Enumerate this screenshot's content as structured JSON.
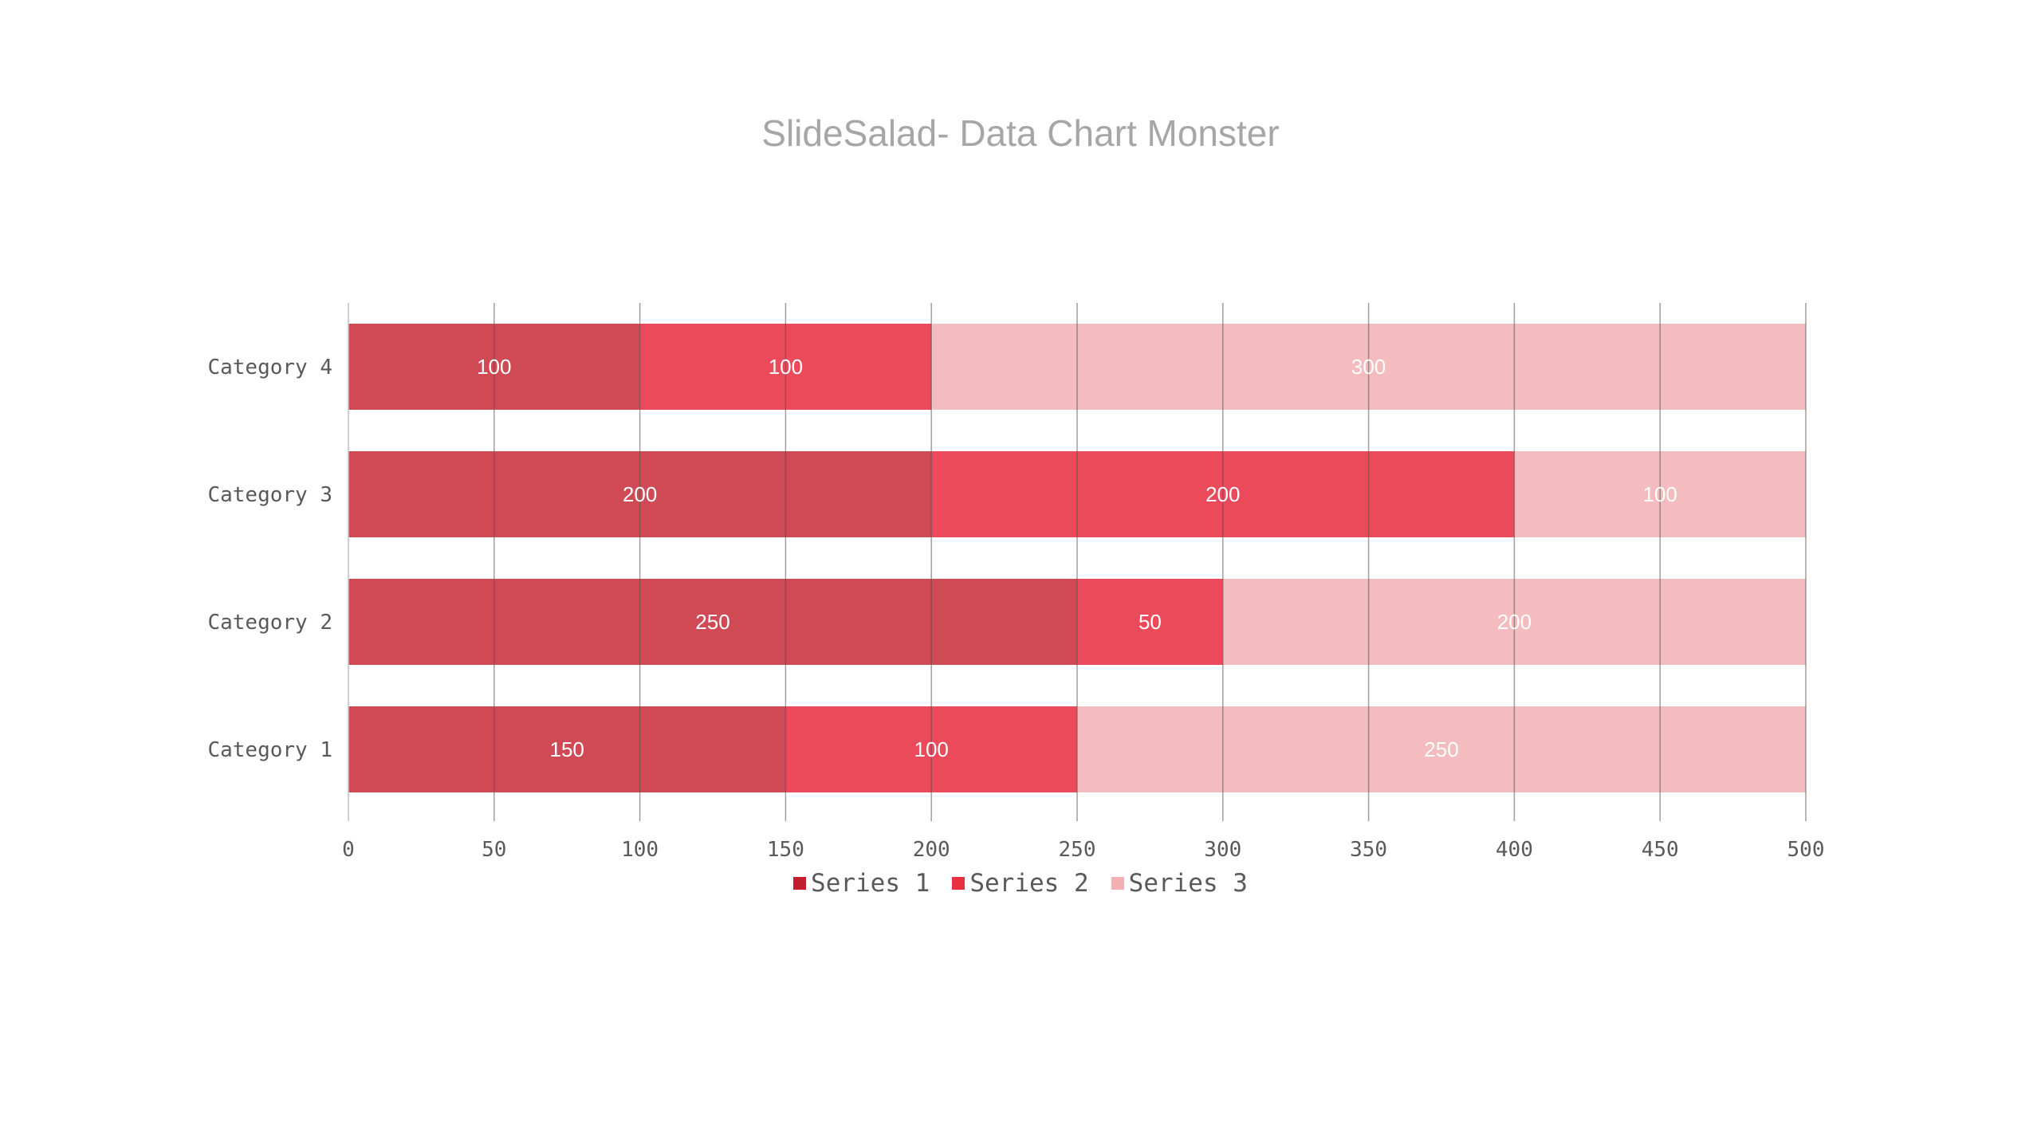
{
  "chart_data": {
    "type": "bar",
    "orientation": "horizontal",
    "stacked": true,
    "title": "SlideSalad- Data Chart Monster",
    "categories": [
      "Category 1",
      "Category 2",
      "Category 3",
      "Category 4"
    ],
    "series": [
      {
        "name": "Series 1",
        "values": [
          150,
          250,
          200,
          100
        ],
        "color": "#d04a55",
        "legend_color": "#c0202e"
      },
      {
        "name": "Series 2",
        "values": [
          100,
          50,
          200,
          100
        ],
        "color": "#eb4a5a",
        "legend_color": "#e8303f"
      },
      {
        "name": "Series 3",
        "values": [
          250,
          200,
          100,
          300
        ],
        "color": "#f4bcbe",
        "legend_color": "#f4b0b3"
      }
    ],
    "xlim": [
      0,
      500
    ],
    "xticks": [
      "0",
      "50",
      "100",
      "150",
      "200",
      "250",
      "300",
      "350",
      "400",
      "450",
      "500"
    ],
    "xlabel": "",
    "ylabel": "",
    "grid": true,
    "legend_position": "bottom",
    "data_labels": true
  }
}
